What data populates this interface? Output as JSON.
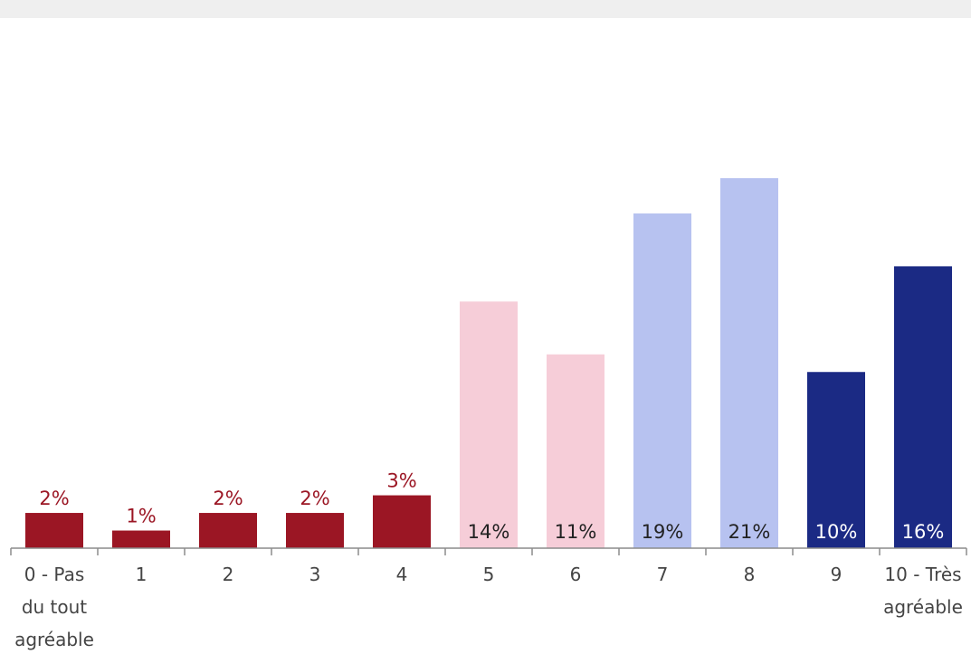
{
  "chart_data": {
    "type": "bar",
    "categories": [
      [
        "0 - Pas",
        "du tout",
        "agréable"
      ],
      [
        "1"
      ],
      [
        "2"
      ],
      [
        "3"
      ],
      [
        "4"
      ],
      [
        "5"
      ],
      [
        "6"
      ],
      [
        "7"
      ],
      [
        "8"
      ],
      [
        "9"
      ],
      [
        "10 - Très",
        "agréable"
      ]
    ],
    "values": [
      2,
      1,
      2,
      2,
      3,
      14,
      11,
      19,
      21,
      10,
      16
    ],
    "value_labels": [
      "2%",
      "1%",
      "2%",
      "2%",
      "3%",
      "14%",
      "11%",
      "19%",
      "21%",
      "10%",
      "16%"
    ],
    "colors": [
      "#9b1624",
      "#9b1624",
      "#9b1624",
      "#9b1624",
      "#9b1624",
      "#f6cdd8",
      "#f6cdd8",
      "#b7c2f0",
      "#b7c2f0",
      "#1b2a84",
      "#1b2a84"
    ],
    "label_colors": [
      "#9b1624",
      "#9b1624",
      "#9b1624",
      "#9b1624",
      "#9b1624",
      "#222222",
      "#222222",
      "#222222",
      "#222222",
      "#ffffff",
      "#ffffff"
    ],
    "label_position": [
      "outside",
      "outside",
      "outside",
      "outside",
      "outside",
      "inside",
      "inside",
      "inside",
      "inside",
      "inside",
      "inside"
    ],
    "title": "",
    "xlabel": "",
    "ylabel": "",
    "ylim": [
      0,
      21
    ],
    "grid": false,
    "legend": "none"
  }
}
